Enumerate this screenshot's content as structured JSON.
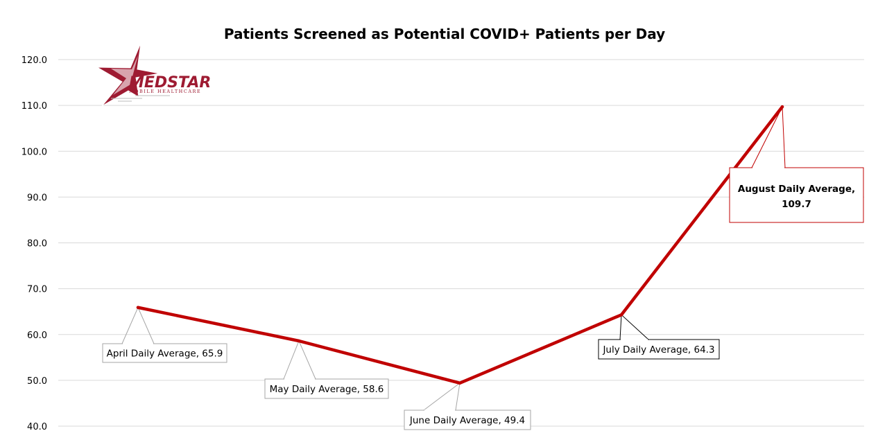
{
  "chart_data": {
    "type": "line",
    "title": "Patients Screened as Potential COVID+ Patients per Day",
    "xlabel": "",
    "ylabel": "",
    "ylim": [
      40,
      120
    ],
    "y_ticks": [
      "40.0",
      "50.0",
      "60.0",
      "70.0",
      "80.0",
      "90.0",
      "100.0",
      "110.0",
      "120.0"
    ],
    "grid": true,
    "series": [
      {
        "x": [
          "April",
          "May",
          "June",
          "July",
          "August"
        ],
        "values": [
          65.9,
          58.6,
          49.4,
          64.3,
          109.7
        ]
      }
    ],
    "annotations": [
      {
        "text": "April Daily Average, 65.9",
        "highlight": false
      },
      {
        "text": "May Daily Average, 58.6",
        "highlight": false
      },
      {
        "text": "June Daily Average, 49.4",
        "highlight": false
      },
      {
        "text": "July Daily Average, 64.3",
        "highlight": false
      },
      {
        "text": [
          "August Daily Average,",
          "109.7"
        ],
        "highlight": true
      }
    ],
    "line_color": "#c00000",
    "highlight_color": "#c00000"
  },
  "logo": {
    "name": "MEDSTAR",
    "subtitle": "MOBILE HEALTHCARE",
    "color": "#9e1b32"
  }
}
